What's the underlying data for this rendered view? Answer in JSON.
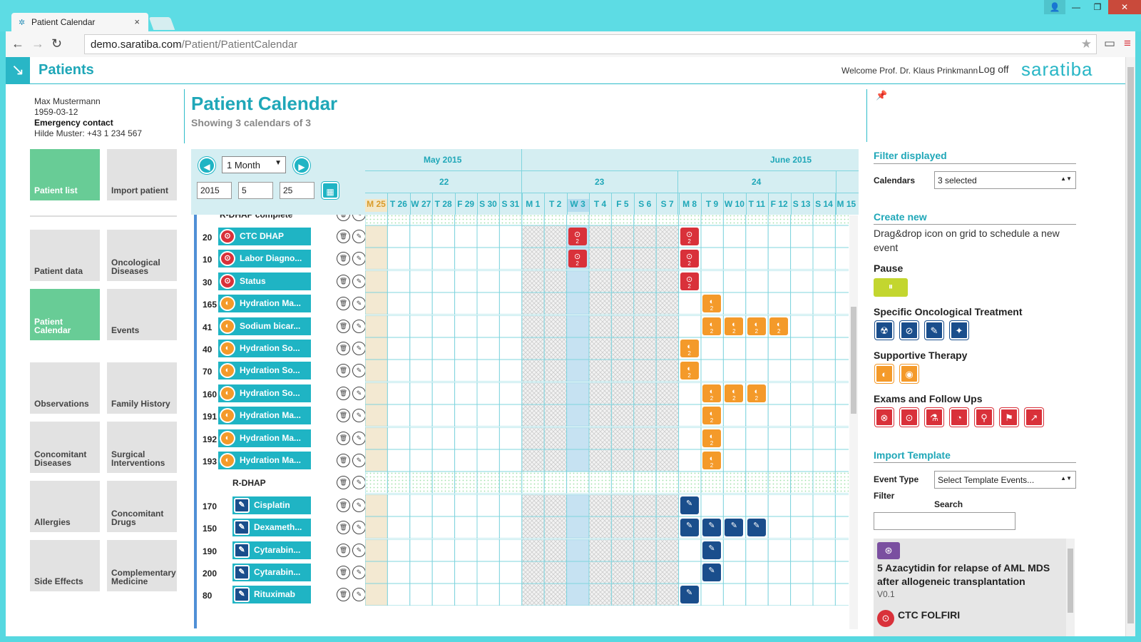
{
  "browser": {
    "tab_title": "Patient Calendar",
    "tab_icon": "saratiba-icon",
    "url_host": "demo.saratiba.com",
    "url_path": "/Patient/PatientCalendar"
  },
  "header": {
    "app_title": "Patients",
    "welcome": "Welcome Prof. Dr. Klaus Prinkmann",
    "logoff": "Log off",
    "brand": "saratiba"
  },
  "patient": {
    "name": "Max Mustermann",
    "dob": "1959-03-12",
    "emergency_label": "Emergency contact",
    "emergency_value": "Hilde Muster: +43 1 234 567"
  },
  "nav": {
    "tiles": [
      {
        "label": "Patient list",
        "active": true
      },
      {
        "label": "Import patient",
        "active": false
      },
      {
        "label": "Patient data",
        "active": false
      },
      {
        "label": "Oncological Diseases",
        "active": false
      },
      {
        "label": "Patient Calendar",
        "active": true
      },
      {
        "label": "Events",
        "active": false
      },
      {
        "label": "Observations",
        "active": false
      },
      {
        "label": "Family History",
        "active": false
      },
      {
        "label": "Concomitant Diseases",
        "active": false
      },
      {
        "label": "Surgical Interventions",
        "active": false
      },
      {
        "label": "Allergies",
        "active": false
      },
      {
        "label": "Concomitant Drugs",
        "active": false
      },
      {
        "label": "Side Effects",
        "active": false
      },
      {
        "label": "Complementary Medicine",
        "active": false
      }
    ]
  },
  "page": {
    "title": "Patient Calendar",
    "subtitle": "Showing 3 calendars of 3"
  },
  "calendar": {
    "range": "1 Month",
    "year": "2015",
    "month": "5",
    "day": "25",
    "months": [
      "May 2015",
      "June 2015"
    ],
    "weeks": [
      "22",
      "23",
      "24"
    ],
    "days": [
      "M 25",
      "T 26",
      "W 27",
      "T 28",
      "F 29",
      "S 30",
      "S 31",
      "M 1",
      "T 2",
      "W 3",
      "T 4",
      "F 5",
      "S 6",
      "S 7",
      "M 8",
      "T 9",
      "W 10",
      "T 11",
      "F 12",
      "S 13",
      "S 14",
      "M 15"
    ],
    "group_top": "R-DHAP complete",
    "group_mid": "R-DHAP",
    "rows": [
      {
        "num": "20",
        "name": "CTC DHAP",
        "color": "red",
        "icon": "lock-icon",
        "events": [
          9,
          14
        ],
        "ev_label": "2"
      },
      {
        "num": "10",
        "name": "Labor Diagno...",
        "color": "red",
        "icon": "flask-icon",
        "events": [
          9,
          14
        ],
        "ev_label": "2"
      },
      {
        "num": "30",
        "name": "Status",
        "color": "red",
        "icon": "thermometer-icon",
        "events": [
          14
        ],
        "ev_label": "2"
      },
      {
        "num": "165",
        "name": "Hydration Ma...",
        "color": "orange",
        "icon": "pill-icon",
        "events": [
          15
        ],
        "ev_label": "2"
      },
      {
        "num": "41",
        "name": "Sodium bicar...",
        "color": "orange",
        "icon": "pill-icon",
        "events": [
          15,
          16,
          17,
          18
        ],
        "ev_label": "2"
      },
      {
        "num": "40",
        "name": "Hydration So...",
        "color": "orange",
        "icon": "pill-icon",
        "events": [
          14
        ],
        "ev_label": "2"
      },
      {
        "num": "70",
        "name": "Hydration So...",
        "color": "orange",
        "icon": "pill-icon",
        "events": [
          14
        ],
        "ev_label": "2"
      },
      {
        "num": "160",
        "name": "Hydration So...",
        "color": "orange",
        "icon": "pill-icon",
        "events": [
          15,
          16,
          17
        ],
        "ev_label": "2"
      },
      {
        "num": "191",
        "name": "Hydration Ma...",
        "color": "orange",
        "icon": "pill-icon",
        "events": [
          15
        ],
        "ev_label": "2"
      },
      {
        "num": "192",
        "name": "Hydration Ma...",
        "color": "orange",
        "icon": "pill-icon",
        "events": [
          15
        ],
        "ev_label": "2"
      },
      {
        "num": "193",
        "name": "Hydration Ma...",
        "color": "orange",
        "icon": "pill-icon",
        "events": [
          15
        ],
        "ev_label": "2"
      },
      {
        "num": "",
        "name": "R-DHAP",
        "group": true
      },
      {
        "num": "170",
        "name": "Cisplatin",
        "color": "blue",
        "icon": "syringe-icon",
        "events": [
          14
        ],
        "ev_label": ""
      },
      {
        "num": "150",
        "name": "Dexameth...",
        "color": "blue",
        "icon": "syringe-icon",
        "events": [
          14,
          15,
          16,
          17
        ],
        "ev_label": ""
      },
      {
        "num": "190",
        "name": "Cytarabin...",
        "color": "blue",
        "icon": "syringe-icon",
        "events": [
          15
        ],
        "ev_label": ""
      },
      {
        "num": "200",
        "name": "Cytarabin...",
        "color": "blue",
        "icon": "syringe-icon",
        "events": [
          15
        ],
        "ev_label": ""
      },
      {
        "num": "80",
        "name": "Rituximab",
        "color": "blue",
        "icon": "syringe-icon",
        "events": [
          14
        ],
        "ev_label": ""
      }
    ]
  },
  "right_panel": {
    "filter_title": "Filter displayed",
    "calendars_label": "Calendars",
    "calendars_value": "3 selected",
    "create_title": "Create new",
    "create_text": "Drag&drop icon on grid to schedule a new event",
    "pause_label": "Pause",
    "specific_label": "Specific Oncological Treatment",
    "supportive_label": "Supportive Therapy",
    "exams_label": "Exams and Follow Ups",
    "import_title": "Import Template",
    "event_type_label": "Event Type",
    "event_type_value": "Select Template Events...",
    "filter_label": "Filter",
    "search_label": "Search",
    "templates": [
      {
        "name": "5 Azacytidin for relapse of AML MDS after allogeneic transplantation",
        "version": "V0.1",
        "color": "#7a4fa0"
      },
      {
        "name": "CTC FOLFIRI",
        "version": "",
        "color": "#d9313a"
      }
    ]
  },
  "colors": {
    "accent": "#1fb4c4",
    "red": "#d9313a",
    "orange": "#f49a2a",
    "blue": "#1a4e8c",
    "green": "#68cc96",
    "lime": "#c3d62f"
  }
}
